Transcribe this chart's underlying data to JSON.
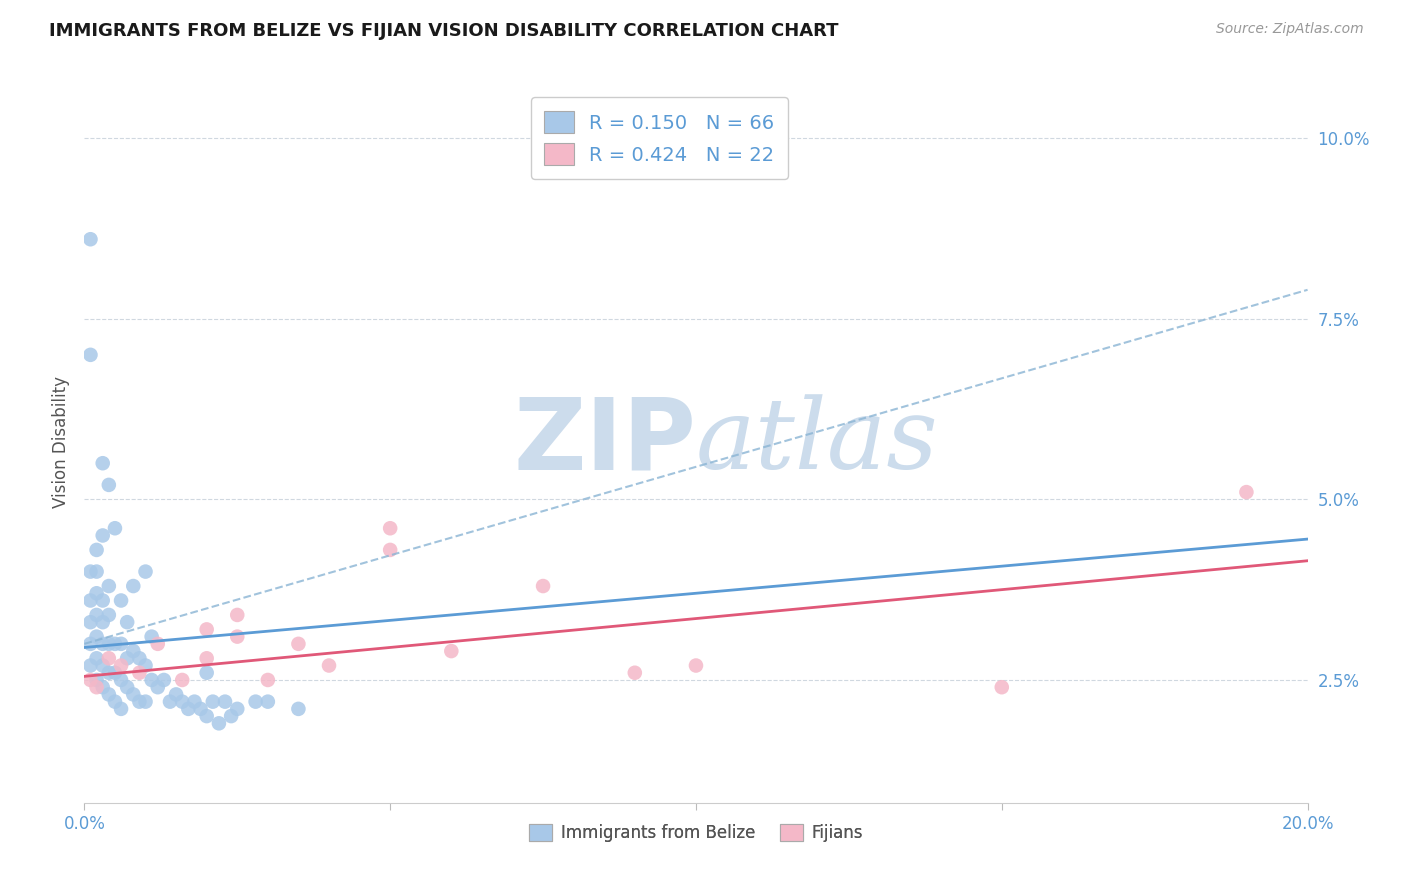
{
  "title": "IMMIGRANTS FROM BELIZE VS FIJIAN VISION DISABILITY CORRELATION CHART",
  "source_text": "Source: ZipAtlas.com",
  "ylabel": "Vision Disability",
  "xlim": [
    0.0,
    0.2
  ],
  "ylim": [
    0.008,
    0.108
  ],
  "legend_label1": "Immigrants from Belize",
  "legend_label2": "Fijians",
  "R1": 0.15,
  "N1": 66,
  "R2": 0.424,
  "N2": 22,
  "color_blue": "#a8c8e8",
  "color_blue_dark": "#5b9bd5",
  "color_pink": "#f4b8c8",
  "color_pink_dark": "#e05878",
  "color_axis_tick": "#5b9bd5",
  "watermark_color": "#ccdcec",
  "background_color": "#ffffff",
  "title_color": "#1a1a1a",
  "grid_color": "#d0d8e0",
  "belize_x": [
    0.001,
    0.001,
    0.001,
    0.001,
    0.001,
    0.002,
    0.002,
    0.002,
    0.002,
    0.002,
    0.002,
    0.002,
    0.003,
    0.003,
    0.003,
    0.003,
    0.003,
    0.003,
    0.004,
    0.004,
    0.004,
    0.004,
    0.004,
    0.005,
    0.005,
    0.005,
    0.005,
    0.006,
    0.006,
    0.006,
    0.006,
    0.007,
    0.007,
    0.007,
    0.008,
    0.008,
    0.008,
    0.009,
    0.009,
    0.01,
    0.01,
    0.01,
    0.011,
    0.011,
    0.012,
    0.013,
    0.014,
    0.015,
    0.016,
    0.017,
    0.018,
    0.019,
    0.02,
    0.02,
    0.021,
    0.022,
    0.023,
    0.024,
    0.025,
    0.028,
    0.03,
    0.035,
    0.001,
    0.001,
    0.003,
    0.004
  ],
  "belize_y": [
    0.027,
    0.03,
    0.033,
    0.036,
    0.04,
    0.025,
    0.028,
    0.031,
    0.034,
    0.037,
    0.04,
    0.043,
    0.024,
    0.027,
    0.03,
    0.033,
    0.036,
    0.045,
    0.023,
    0.026,
    0.03,
    0.034,
    0.038,
    0.022,
    0.026,
    0.03,
    0.046,
    0.021,
    0.025,
    0.03,
    0.036,
    0.024,
    0.028,
    0.033,
    0.023,
    0.029,
    0.038,
    0.022,
    0.028,
    0.022,
    0.027,
    0.04,
    0.025,
    0.031,
    0.024,
    0.025,
    0.022,
    0.023,
    0.022,
    0.021,
    0.022,
    0.021,
    0.02,
    0.026,
    0.022,
    0.019,
    0.022,
    0.02,
    0.021,
    0.022,
    0.022,
    0.021,
    0.086,
    0.07,
    0.055,
    0.052
  ],
  "fijian_x": [
    0.001,
    0.002,
    0.004,
    0.006,
    0.009,
    0.012,
    0.016,
    0.02,
    0.025,
    0.03,
    0.04,
    0.05,
    0.06,
    0.075,
    0.09,
    0.02,
    0.025,
    0.035,
    0.05,
    0.1,
    0.15,
    0.19
  ],
  "fijian_y": [
    0.025,
    0.024,
    0.028,
    0.027,
    0.026,
    0.03,
    0.025,
    0.028,
    0.031,
    0.025,
    0.027,
    0.046,
    0.029,
    0.038,
    0.026,
    0.032,
    0.034,
    0.03,
    0.043,
    0.027,
    0.024,
    0.051
  ]
}
